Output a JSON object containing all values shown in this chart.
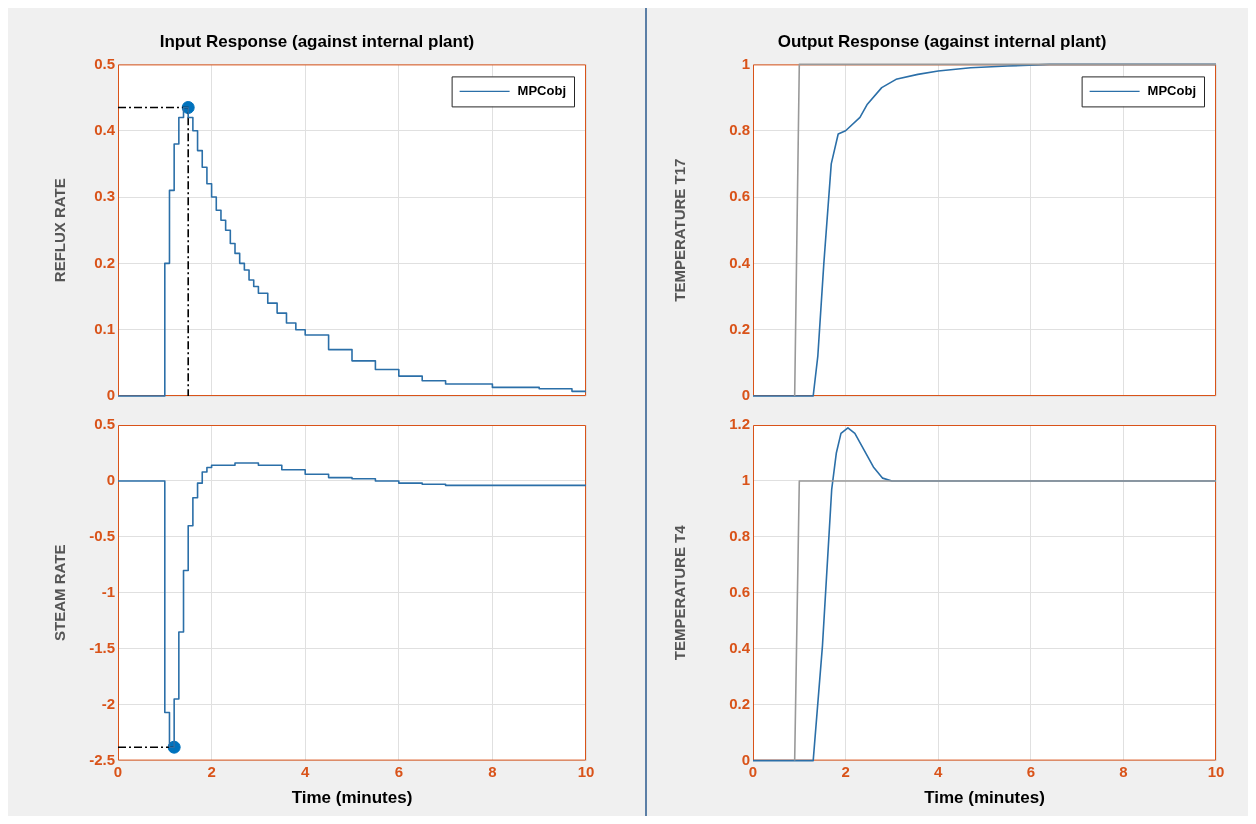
{
  "chart_data": [
    {
      "type": "step",
      "title": "Input Response (against internal plant)",
      "ylabel": "REFLUX RATE",
      "xlim": [
        0,
        10
      ],
      "xticks": [
        0,
        2,
        4,
        6,
        8,
        10
      ],
      "ylim": [
        0,
        0.5
      ],
      "yticks": [
        0,
        0.1,
        0.2,
        0.3,
        0.4,
        0.5
      ],
      "grid": true,
      "legend": "top right",
      "tick_labels": "y",
      "series": [
        {
          "name": "MPCobj",
          "color": "#2b6fa8",
          "x": [
            0,
            1.0,
            1.1,
            1.2,
            1.3,
            1.4,
            1.5,
            1.6,
            1.7,
            1.8,
            1.9,
            2.0,
            2.1,
            2.2,
            2.3,
            2.4,
            2.5,
            2.6,
            2.7,
            2.8,
            2.9,
            3.0,
            3.2,
            3.4,
            3.6,
            3.8,
            4.0,
            4.5,
            5.0,
            5.5,
            6.0,
            6.5,
            7.0,
            8.0,
            9.0,
            9.7,
            10
          ],
          "values": [
            0,
            0.2,
            0.31,
            0.38,
            0.42,
            0.435,
            0.42,
            0.4,
            0.37,
            0.345,
            0.32,
            0.3,
            0.28,
            0.265,
            0.25,
            0.23,
            0.215,
            0.2,
            0.19,
            0.175,
            0.165,
            0.155,
            0.14,
            0.125,
            0.11,
            0.1,
            0.092,
            0.07,
            0.053,
            0.04,
            0.03,
            0.023,
            0.018,
            0.013,
            0.011,
            0.007,
            0.007
          ]
        },
        {
          "type": "line",
          "color": "#000000",
          "line_style": "dashed",
          "x": [
            0,
            1.5,
            1.5
          ],
          "values": [
            0.435,
            0.435,
            0
          ]
        },
        {
          "type": "scatter",
          "color": "#0072bd",
          "marker": "circle",
          "x": [
            1.5
          ],
          "values": [
            0.435
          ]
        }
      ]
    },
    {
      "type": "line",
      "title": "Output Response (against internal plant)",
      "ylabel": "TEMPERATURE T17",
      "xlim": [
        0,
        10
      ],
      "xticks": [
        0,
        2,
        4,
        6,
        8,
        10
      ],
      "ylim": [
        0,
        1
      ],
      "yticks": [
        0,
        0.2,
        0.4,
        0.6,
        0.8,
        1
      ],
      "grid": true,
      "legend": "top right",
      "tick_labels": "y",
      "series": [
        {
          "color": "#999999",
          "x": [
            0.9,
            1.0,
            10
          ],
          "values": [
            0,
            1,
            1
          ]
        },
        {
          "name": "MPCobj",
          "color": "#2b6fa8",
          "x": [
            0,
            1.3,
            1.4,
            1.53,
            1.69,
            1.84,
            2.0,
            2.31,
            2.47,
            2.78,
            3.09,
            3.56,
            4.0,
            4.7,
            5.5,
            6.4,
            10
          ],
          "values": [
            0,
            0,
            0.12,
            0.4,
            0.7,
            0.79,
            0.8,
            0.84,
            0.88,
            0.93,
            0.955,
            0.97,
            0.98,
            0.99,
            0.995,
            1,
            1
          ]
        }
      ]
    },
    {
      "type": "step",
      "ylabel": "STEAM RATE",
      "xlabel": "Time (minutes)",
      "xlim": [
        0,
        10
      ],
      "xticks": [
        0,
        2,
        4,
        6,
        8,
        10
      ],
      "ylim": [
        -2.5,
        0.5
      ],
      "yticks": [
        -2.5,
        -2,
        -1.5,
        -1,
        -0.5,
        0,
        0.5
      ],
      "grid": true,
      "series": [
        {
          "color": "#2b6fa8",
          "x": [
            0,
            1.0,
            1.1,
            1.2,
            1.3,
            1.4,
            1.5,
            1.6,
            1.7,
            1.8,
            1.9,
            2.0,
            2.5,
            2.8,
            3.0,
            3.5,
            4.0,
            4.5,
            5.0,
            5.5,
            6.0,
            6.5,
            7.0,
            10
          ],
          "values": [
            0,
            -2.07,
            -2.38,
            -1.95,
            -1.35,
            -0.8,
            -0.4,
            -0.15,
            -0.02,
            0.08,
            0.12,
            0.14,
            0.16,
            0.16,
            0.14,
            0.1,
            0.06,
            0.03,
            0.02,
            0,
            -0.02,
            -0.03,
            -0.04,
            -0.04
          ]
        },
        {
          "type": "line",
          "color": "#000000",
          "line_style": "dashed",
          "x": [
            0,
            1.2
          ],
          "values": [
            -2.38,
            -2.38
          ]
        },
        {
          "type": "scatter",
          "color": "#0072bd",
          "marker": "circle",
          "x": [
            1.2
          ],
          "values": [
            -2.38
          ]
        }
      ]
    },
    {
      "type": "line",
      "ylabel": "TEMPERATURE T4",
      "xlabel": "Time (minutes)",
      "xlim": [
        0,
        10
      ],
      "xticks": [
        0,
        2,
        4,
        6,
        8,
        10
      ],
      "ylim": [
        0,
        1.2
      ],
      "yticks": [
        0,
        0.2,
        0.4,
        0.6,
        0.8,
        1,
        1.2
      ],
      "grid": true,
      "series": [
        {
          "color": "#999999",
          "x": [
            0.9,
            1.0,
            10
          ],
          "values": [
            0,
            1,
            1
          ]
        },
        {
          "color": "#2b6fa8",
          "x": [
            0,
            1.3,
            1.5,
            1.7,
            1.8,
            1.9,
            2.05,
            2.2,
            2.4,
            2.6,
            2.8,
            3.0,
            10
          ],
          "values": [
            0,
            0,
            0.41,
            0.97,
            1.1,
            1.17,
            1.19,
            1.17,
            1.11,
            1.05,
            1.01,
            1,
            1
          ]
        }
      ]
    }
  ]
}
